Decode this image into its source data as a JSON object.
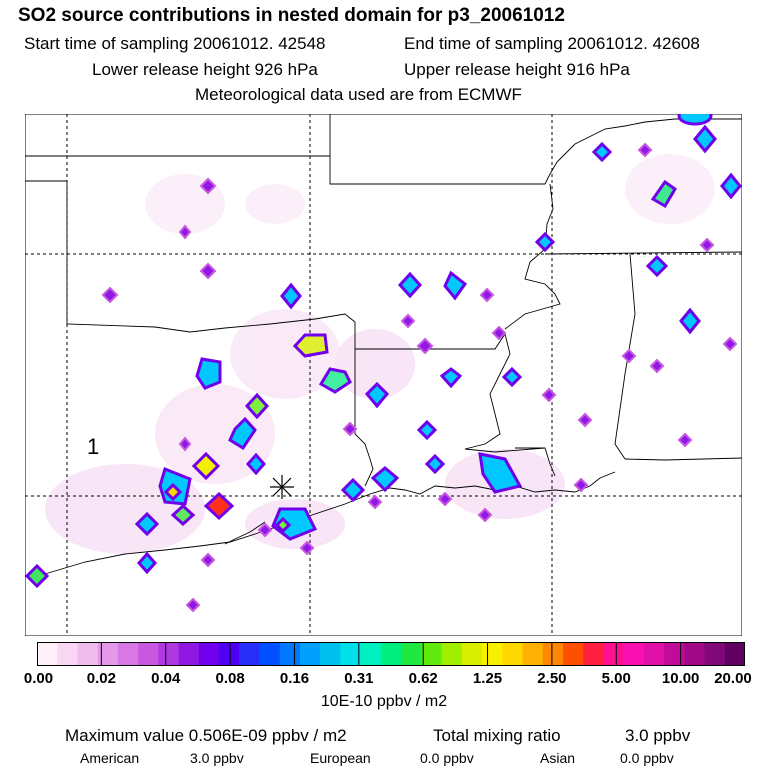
{
  "header": {
    "title": "SO2 source contributions in nested domain for p3_20061012",
    "start_label": "Start time of sampling 20061012. 42548",
    "end_label": "End time of sampling 20061012. 42608",
    "lower_label": "Lower release height  926 hPa",
    "upper_label": "Upper release height  916 hPa",
    "met_label": "Meteorological data used are from ECMWF"
  },
  "map": {
    "region_marker": "1",
    "release_marker": "×"
  },
  "colorbar": {
    "ticks": [
      "0.00",
      "0.02",
      "0.04",
      "0.08",
      "0.16",
      "0.31",
      "0.62",
      "1.25",
      "2.50",
      "5.00",
      "10.00",
      "20.00"
    ],
    "colors": [
      "#fff0fa",
      "#f8d8f4",
      "#f0bcee",
      "#e49ae8",
      "#d878e4",
      "#c858e0",
      "#b038e0",
      "#9018e4",
      "#7000ec",
      "#5000f0",
      "#2830f8",
      "#0050ff",
      "#0078ff",
      "#00a0ff",
      "#00c0f0",
      "#00e0e8",
      "#00f0c0",
      "#00ee80",
      "#20e840",
      "#60ea10",
      "#a0ee00",
      "#d8f000",
      "#f8f000",
      "#ffd800",
      "#ffb000",
      "#ff8800",
      "#ff5000",
      "#ff2040",
      "#ff1090",
      "#f810b0",
      "#e010a8",
      "#c00c98",
      "#a00888",
      "#800878",
      "#600060"
    ],
    "unit": "10E-10 ppbv / m2"
  },
  "footer": {
    "max_label": "Maximum value  0.506E-09 ppbv / m2",
    "total_label": "Total mixing ratio",
    "total_value": "3.0 ppbv",
    "american_label": "American",
    "american_value": "3.0 ppbv",
    "european_label": "European",
    "european_value": "0.0 ppbv",
    "asian_label": "Asian",
    "asian_value": "0.0 ppbv"
  }
}
